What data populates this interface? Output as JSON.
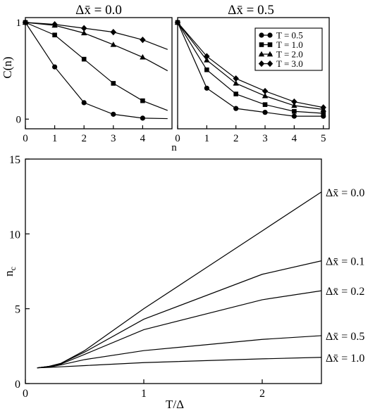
{
  "chart_data": [
    {
      "type": "line",
      "title": "Δx̄ = 0.0",
      "xlabel": "",
      "ylabel": "C(n)",
      "xlim": [
        0,
        5
      ],
      "ylim": [
        -0.1,
        1.05
      ],
      "x_ticks": [
        "0",
        "1",
        "2",
        "3",
        "4"
      ],
      "y_ticks": [
        "0",
        "1"
      ],
      "x": [
        0,
        1,
        2,
        3,
        4,
        4.85
      ],
      "series": [
        {
          "name": "T = 0.5",
          "marker": "circle",
          "values": [
            1.0,
            0.54,
            0.17,
            0.05,
            0.01,
            0.005
          ]
        },
        {
          "name": "T = 1.0",
          "marker": "square",
          "values": [
            1.0,
            0.87,
            0.62,
            0.37,
            0.19,
            0.09
          ]
        },
        {
          "name": "T = 2.0",
          "marker": "triangle",
          "values": [
            1.0,
            0.97,
            0.89,
            0.77,
            0.64,
            0.5
          ]
        },
        {
          "name": "T = 3.0",
          "marker": "diamond",
          "values": [
            1.0,
            0.98,
            0.94,
            0.9,
            0.82,
            0.72
          ]
        }
      ]
    },
    {
      "type": "line",
      "title": "Δx̄ = 0.5",
      "xlabel": "n",
      "ylabel": "",
      "xlim": [
        0,
        5.2
      ],
      "ylim": [
        -0.1,
        1.05
      ],
      "x_ticks": [
        "0",
        "1",
        "2",
        "3",
        "4",
        "5"
      ],
      "x": [
        0,
        1,
        2,
        3,
        4,
        5
      ],
      "legend_position": "top-right",
      "series": [
        {
          "name": "T = 0.5",
          "marker": "circle",
          "values": [
            1.0,
            0.32,
            0.11,
            0.07,
            0.03,
            0.03
          ]
        },
        {
          "name": "T = 1.0",
          "marker": "square",
          "values": [
            1.0,
            0.51,
            0.26,
            0.15,
            0.08,
            0.06
          ]
        },
        {
          "name": "T = 2.0",
          "marker": "triangle",
          "values": [
            1.0,
            0.61,
            0.37,
            0.24,
            0.14,
            0.1
          ]
        },
        {
          "name": "T = 3.0",
          "marker": "diamond",
          "values": [
            1.0,
            0.65,
            0.42,
            0.29,
            0.18,
            0.12
          ]
        }
      ]
    },
    {
      "type": "line",
      "xlabel": "T/Δ",
      "ylabel": "n_c",
      "xlim": [
        0,
        2.5
      ],
      "ylim": [
        0,
        15
      ],
      "x_ticks": [
        "0",
        "1",
        "2"
      ],
      "y_ticks": [
        "0",
        "5",
        "10",
        "15"
      ],
      "x": [
        0.1,
        0.2,
        0.3,
        0.5,
        1.0,
        2.0,
        2.5
      ],
      "series": [
        {
          "name": "Δx̄ = 0.0",
          "values": [
            1.05,
            1.15,
            1.35,
            2.2,
            5.0,
            10.2,
            12.8
          ]
        },
        {
          "name": "Δx̄ = 0.1",
          "values": [
            1.05,
            1.15,
            1.35,
            2.1,
            4.3,
            7.3,
            8.2
          ]
        },
        {
          "name": "Δx̄ = 0.2",
          "values": [
            1.05,
            1.15,
            1.3,
            1.95,
            3.6,
            5.6,
            6.2
          ]
        },
        {
          "name": "Δx̄ = 0.5",
          "values": [
            1.05,
            1.1,
            1.25,
            1.6,
            2.2,
            2.95,
            3.2
          ]
        },
        {
          "name": "Δx̄ = 1.0",
          "values": [
            1.05,
            1.08,
            1.12,
            1.2,
            1.4,
            1.65,
            1.75
          ]
        }
      ]
    }
  ]
}
